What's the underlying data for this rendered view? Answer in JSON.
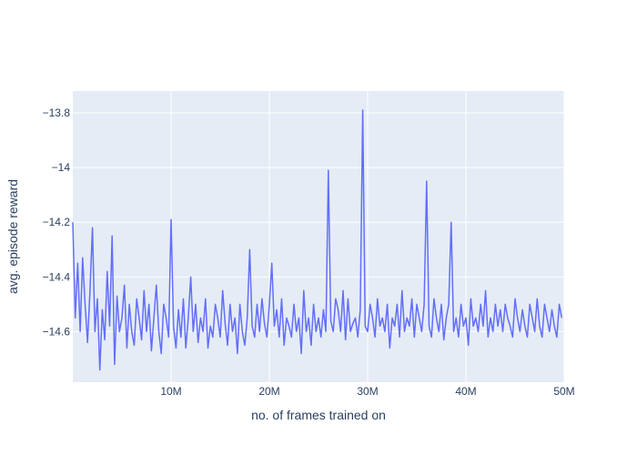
{
  "chart_data": {
    "type": "line",
    "title": "",
    "xlabel": "no. of frames trained on",
    "ylabel": "avg. episode reward",
    "xlim": [
      0,
      50000000
    ],
    "ylim": [
      -14.785,
      -13.72
    ],
    "grid": true,
    "legend": "none",
    "colors": {
      "plot_bg": "#e5ecf6",
      "grid": "#ffffff",
      "line": "#636efa",
      "text": "#2a3f5f"
    },
    "x_ticks": [
      {
        "value": 10000000,
        "label": "10M"
      },
      {
        "value": 20000000,
        "label": "20M"
      },
      {
        "value": 30000000,
        "label": "30M"
      },
      {
        "value": 40000000,
        "label": "40M"
      },
      {
        "value": 50000000,
        "label": "50M"
      }
    ],
    "y_ticks": [
      {
        "value": -13.8,
        "label": "−13.8"
      },
      {
        "value": -14.0,
        "label": "−14"
      },
      {
        "value": -14.2,
        "label": "−14.2"
      },
      {
        "value": -14.4,
        "label": "−14.4"
      },
      {
        "value": -14.6,
        "label": "−14.6"
      }
    ],
    "series": [
      {
        "x_step": 250000,
        "values": [
          -14.2,
          -14.55,
          -14.35,
          -14.6,
          -14.33,
          -14.5,
          -14.64,
          -14.45,
          -14.22,
          -14.6,
          -14.48,
          -14.74,
          -14.52,
          -14.63,
          -14.38,
          -14.58,
          -14.25,
          -14.72,
          -14.47,
          -14.6,
          -14.55,
          -14.43,
          -14.66,
          -14.5,
          -14.6,
          -14.65,
          -14.48,
          -14.55,
          -14.63,
          -14.45,
          -14.6,
          -14.5,
          -14.67,
          -14.55,
          -14.43,
          -14.6,
          -14.68,
          -14.5,
          -14.55,
          -14.62,
          -14.19,
          -14.58,
          -14.66,
          -14.52,
          -14.62,
          -14.48,
          -14.66,
          -14.55,
          -14.4,
          -14.6,
          -14.5,
          -14.64,
          -14.55,
          -14.6,
          -14.48,
          -14.66,
          -14.58,
          -14.62,
          -14.5,
          -14.55,
          -14.62,
          -14.45,
          -14.57,
          -14.65,
          -14.5,
          -14.6,
          -14.55,
          -14.68,
          -14.5,
          -14.6,
          -14.65,
          -14.55,
          -14.3,
          -14.58,
          -14.62,
          -14.5,
          -14.6,
          -14.48,
          -14.57,
          -14.62,
          -14.5,
          -14.35,
          -14.58,
          -14.52,
          -14.62,
          -14.48,
          -14.65,
          -14.55,
          -14.58,
          -14.62,
          -14.5,
          -14.6,
          -14.55,
          -14.68,
          -14.45,
          -14.6,
          -14.55,
          -14.65,
          -14.5,
          -14.6,
          -14.55,
          -14.62,
          -14.52,
          -14.6,
          -14.01,
          -14.56,
          -14.6,
          -14.48,
          -14.52,
          -14.6,
          -14.45,
          -14.63,
          -14.48,
          -14.6,
          -14.57,
          -14.55,
          -14.62,
          -14.52,
          -13.79,
          -14.58,
          -14.6,
          -14.5,
          -14.55,
          -14.62,
          -14.48,
          -14.58,
          -14.55,
          -14.6,
          -14.5,
          -14.66,
          -14.55,
          -14.58,
          -14.5,
          -14.62,
          -14.45,
          -14.6,
          -14.55,
          -14.58,
          -14.48,
          -14.62,
          -14.5,
          -14.55,
          -14.6,
          -14.5,
          -14.05,
          -14.58,
          -14.62,
          -14.48,
          -14.55,
          -14.6,
          -14.5,
          -14.63,
          -14.55,
          -14.5,
          -14.2,
          -14.6,
          -14.55,
          -14.62,
          -14.5,
          -14.58,
          -14.55,
          -14.65,
          -14.48,
          -14.58,
          -14.55,
          -14.6,
          -14.5,
          -14.58,
          -14.45,
          -14.62,
          -14.55,
          -14.6,
          -14.5,
          -14.58,
          -14.52,
          -14.6,
          -14.5,
          -14.55,
          -14.58,
          -14.62,
          -14.48,
          -14.55,
          -14.6,
          -14.52,
          -14.58,
          -14.62,
          -14.5,
          -14.55,
          -14.6,
          -14.48,
          -14.58,
          -14.62,
          -14.5,
          -14.55,
          -14.6,
          -14.52,
          -14.58,
          -14.62,
          -14.5,
          -14.55
        ],
        "note_do_not_use": null
      }
    ]
  }
}
